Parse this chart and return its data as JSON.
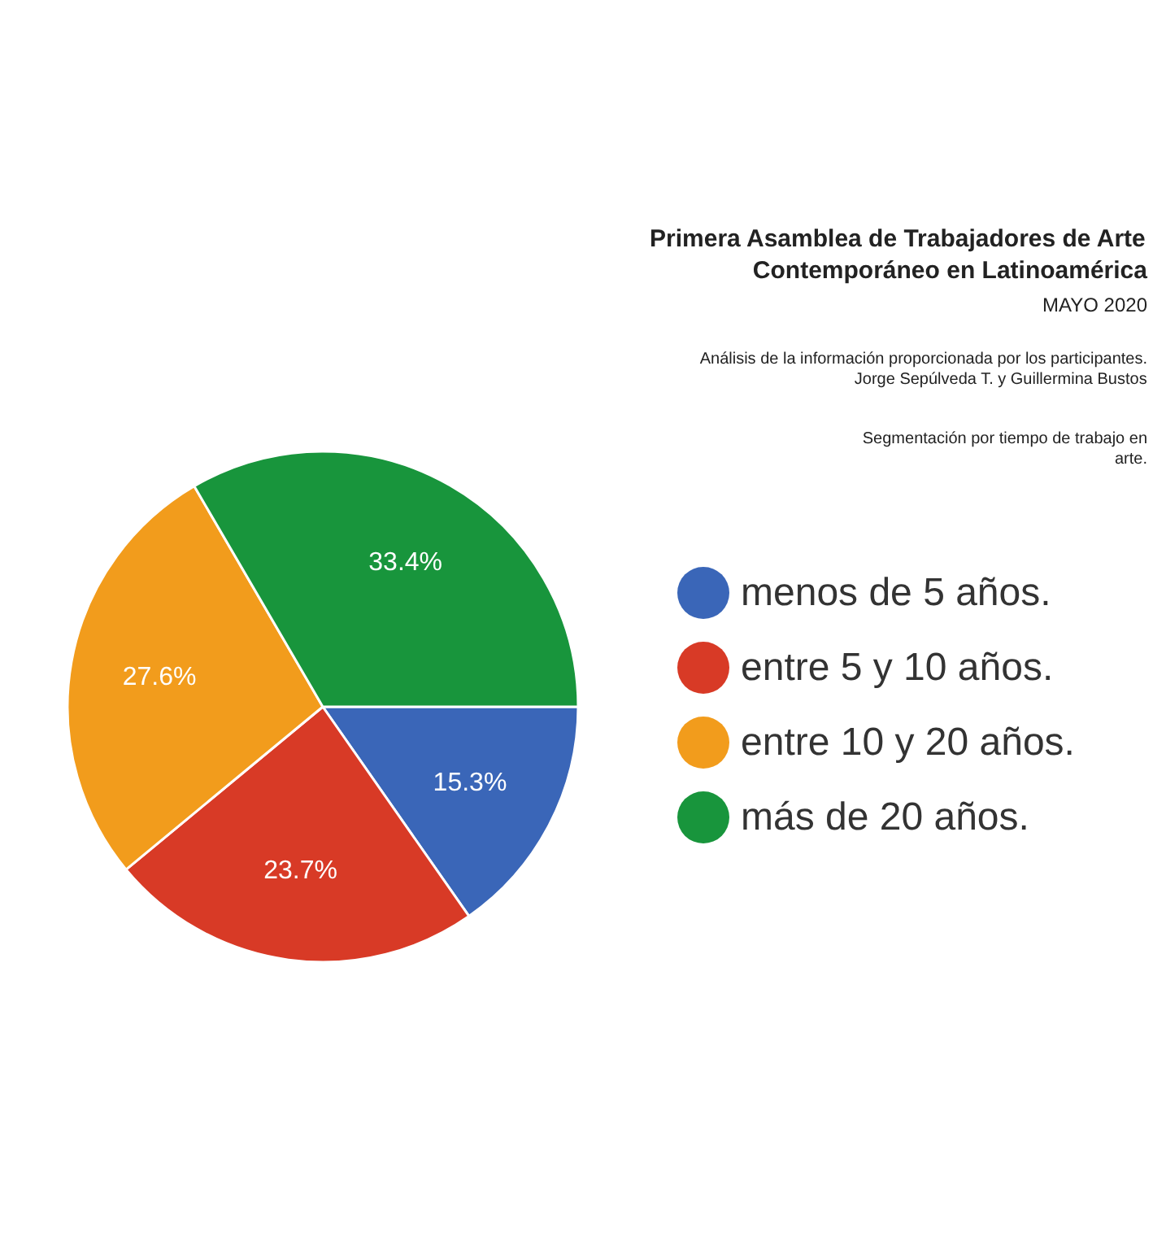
{
  "chart_data": {
    "type": "pie",
    "title": "Primera Asamblea de Trabajadores de Arte\nContemporáneo en Latinoamérica",
    "subtitle": "MAYO 2020",
    "annotations": [
      "Análisis de la información proporcionada por los participantes.\nJorge Sepúlveda T. y Guillermina Bustos",
      "Segmentación por tiempo de trabajo en\narte."
    ],
    "categories": [
      "menos de 5 años.",
      "entre 5 y 10 años.",
      "entre 10 y 20 años.",
      "más de 20 años."
    ],
    "values": [
      15.3,
      23.7,
      27.6,
      33.4
    ],
    "value_labels": [
      "15.3%",
      "23.7%",
      "27.6%",
      "33.4%"
    ],
    "colors": [
      "#3a66b8",
      "#d83a26",
      "#f29c1c",
      "#18953c"
    ],
    "legend": "right"
  }
}
